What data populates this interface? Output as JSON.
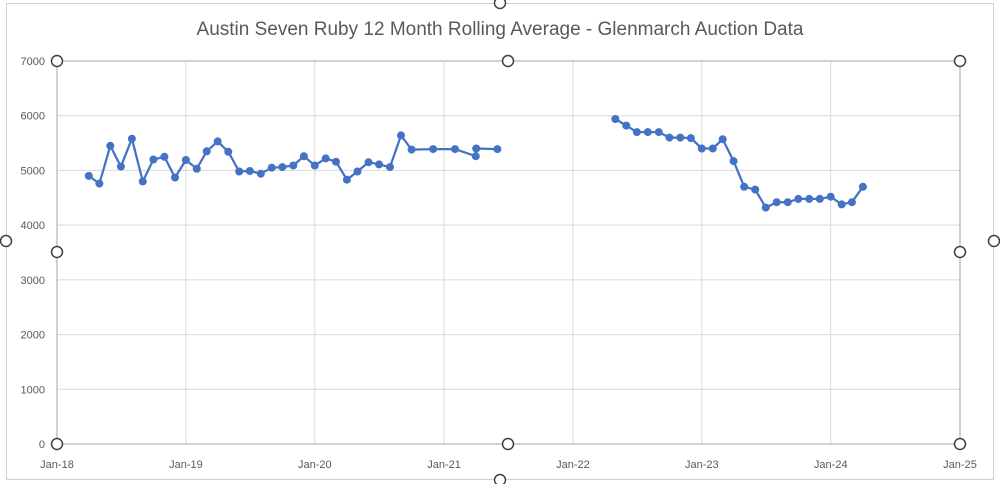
{
  "chart_data": {
    "type": "line",
    "title": "Austin Seven Ruby 12 Month Rolling Average - Glenmarch Auction Data",
    "xlabel": "",
    "ylabel": "",
    "ylim": [
      0,
      7000
    ],
    "xlim": [
      "2018-01-01",
      "2025-01-01"
    ],
    "yticks": [
      0,
      1000,
      2000,
      3000,
      4000,
      5000,
      6000,
      7000
    ],
    "xticks": [
      {
        "date": "2018-01-01",
        "label": "Jan-18"
      },
      {
        "date": "2019-01-01",
        "label": "Jan-19"
      },
      {
        "date": "2020-01-01",
        "label": "Jan-20"
      },
      {
        "date": "2021-01-01",
        "label": "Jan-21"
      },
      {
        "date": "2022-01-01",
        "label": "Jan-22"
      },
      {
        "date": "2023-01-01",
        "label": "Jan-23"
      },
      {
        "date": "2024-01-01",
        "label": "Jan-24"
      },
      {
        "date": "2025-01-01",
        "label": "Jan-25"
      }
    ],
    "grid": true,
    "legend": "none",
    "series_color": "#4472c4",
    "grid_color": "#d9d9d9",
    "series": [
      {
        "segments": [
          [
            {
              "x": "2018-04-01",
              "y": 4900
            },
            {
              "x": "2018-05-01",
              "y": 4760
            },
            {
              "x": "2018-06-01",
              "y": 5450
            },
            {
              "x": "2018-07-01",
              "y": 5070
            },
            {
              "x": "2018-08-01",
              "y": 5580
            },
            {
              "x": "2018-09-01",
              "y": 4800
            },
            {
              "x": "2018-10-01",
              "y": 5200
            },
            {
              "x": "2018-11-01",
              "y": 5250
            },
            {
              "x": "2018-12-01",
              "y": 4870
            },
            {
              "x": "2019-01-01",
              "y": 5190
            },
            {
              "x": "2019-02-01",
              "y": 5030
            },
            {
              "x": "2019-03-01",
              "y": 5350
            },
            {
              "x": "2019-04-01",
              "y": 5530
            },
            {
              "x": "2019-05-01",
              "y": 5340
            },
            {
              "x": "2019-06-01",
              "y": 4980
            },
            {
              "x": "2019-07-01",
              "y": 4990
            },
            {
              "x": "2019-08-01",
              "y": 4940
            },
            {
              "x": "2019-09-01",
              "y": 5050
            },
            {
              "x": "2019-10-01",
              "y": 5060
            },
            {
              "x": "2019-11-01",
              "y": 5090
            },
            {
              "x": "2019-12-01",
              "y": 5260
            },
            {
              "x": "2020-01-01",
              "y": 5090
            },
            {
              "x": "2020-02-01",
              "y": 5220
            },
            {
              "x": "2020-03-01",
              "y": 5160
            },
            {
              "x": "2020-04-01",
              "y": 4830
            },
            {
              "x": "2020-05-01",
              "y": 4980
            },
            {
              "x": "2020-06-01",
              "y": 5150
            },
            {
              "x": "2020-07-01",
              "y": 5110
            },
            {
              "x": "2020-08-01",
              "y": 5060
            },
            {
              "x": "2020-09-01",
              "y": 5640
            },
            {
              "x": "2020-10-01",
              "y": 5380
            },
            {
              "x": "2020-12-01",
              "y": 5390
            },
            {
              "x": "2021-02-01",
              "y": 5390
            },
            {
              "x": "2021-04-01",
              "y": 5260
            },
            {
              "x": "2021-04-02",
              "y": 5400
            },
            {
              "x": "2021-06-01",
              "y": 5390
            }
          ],
          [
            {
              "x": "2022-05-01",
              "y": 5940
            },
            {
              "x": "2022-06-01",
              "y": 5820
            },
            {
              "x": "2022-07-01",
              "y": 5700
            },
            {
              "x": "2022-08-01",
              "y": 5700
            },
            {
              "x": "2022-09-01",
              "y": 5700
            },
            {
              "x": "2022-10-01",
              "y": 5600
            },
            {
              "x": "2022-11-01",
              "y": 5600
            },
            {
              "x": "2022-12-01",
              "y": 5590
            },
            {
              "x": "2023-01-01",
              "y": 5400
            },
            {
              "x": "2023-02-01",
              "y": 5400
            },
            {
              "x": "2023-03-01",
              "y": 5570
            },
            {
              "x": "2023-04-01",
              "y": 5170
            },
            {
              "x": "2023-05-01",
              "y": 4700
            },
            {
              "x": "2023-06-01",
              "y": 4650
            },
            {
              "x": "2023-07-01",
              "y": 4320
            },
            {
              "x": "2023-08-01",
              "y": 4420
            },
            {
              "x": "2023-09-01",
              "y": 4420
            },
            {
              "x": "2023-10-01",
              "y": 4480
            },
            {
              "x": "2023-11-01",
              "y": 4480
            },
            {
              "x": "2023-12-01",
              "y": 4480
            },
            {
              "x": "2024-01-01",
              "y": 4520
            },
            {
              "x": "2024-02-01",
              "y": 4380
            },
            {
              "x": "2024-03-01",
              "y": 4420
            },
            {
              "x": "2024-04-01",
              "y": 4700
            }
          ]
        ]
      }
    ]
  }
}
